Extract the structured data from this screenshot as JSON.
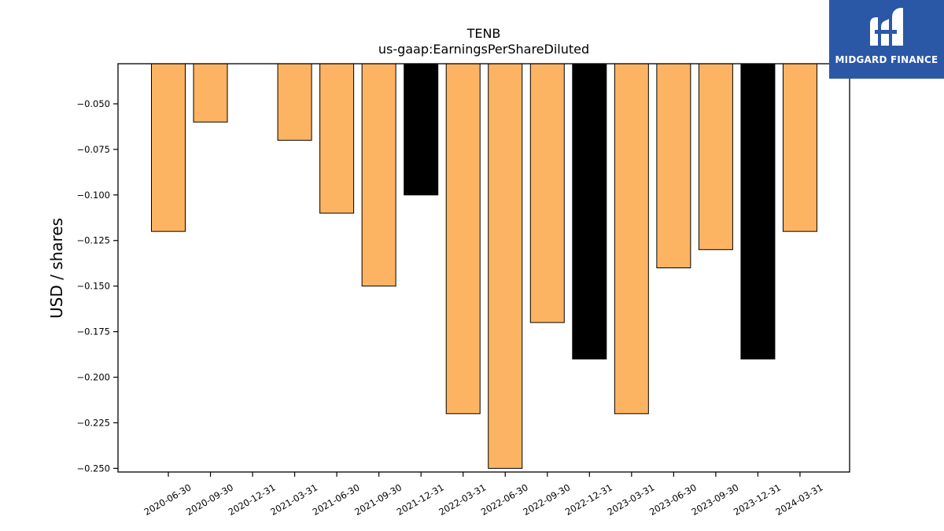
{
  "brand": {
    "name": "MIDGARD FINANCE",
    "logo_icon": "midgard-m-logo-icon",
    "background_color": "#2b57a7",
    "text_color": "#ffffff"
  },
  "chart_data": {
    "type": "bar",
    "title": "TENB",
    "subtitle": "us-gaap:EarningsPerShareDiluted",
    "xlabel": "",
    "ylabel": "USD / shares",
    "categories": [
      "2020-06-30",
      "2020-09-30",
      "2020-12-31",
      "2021-03-31",
      "2021-06-30",
      "2021-09-30",
      "2021-12-31",
      "2022-03-31",
      "2022-06-30",
      "2022-09-30",
      "2022-12-31",
      "2023-03-31",
      "2023-06-30",
      "2023-09-30",
      "2023-12-31",
      "2024-03-31"
    ],
    "values": [
      -0.12,
      -0.06,
      null,
      -0.07,
      -0.11,
      -0.15,
      -0.1,
      -0.22,
      -0.25,
      -0.17,
      -0.19,
      -0.22,
      -0.14,
      -0.13,
      -0.19,
      -0.12
    ],
    "bar_colors": [
      "#fdb462",
      "#fdb462",
      "#fdb462",
      "#fdb462",
      "#fdb462",
      "#fdb462",
      "#000000",
      "#fdb462",
      "#fdb462",
      "#fdb462",
      "#000000",
      "#fdb462",
      "#fdb462",
      "#fdb462",
      "#000000",
      "#fdb462"
    ],
    "yticks": [
      -0.05,
      -0.075,
      -0.1,
      -0.125,
      -0.15,
      -0.175,
      -0.2,
      -0.225,
      -0.25
    ],
    "ytick_labels": [
      "−0.050",
      "−0.075",
      "−0.100",
      "−0.125",
      "−0.150",
      "−0.175",
      "−0.200",
      "−0.225",
      "−0.250"
    ],
    "ylim": [
      -0.252,
      -0.028
    ],
    "grid": false,
    "legend": "none"
  }
}
